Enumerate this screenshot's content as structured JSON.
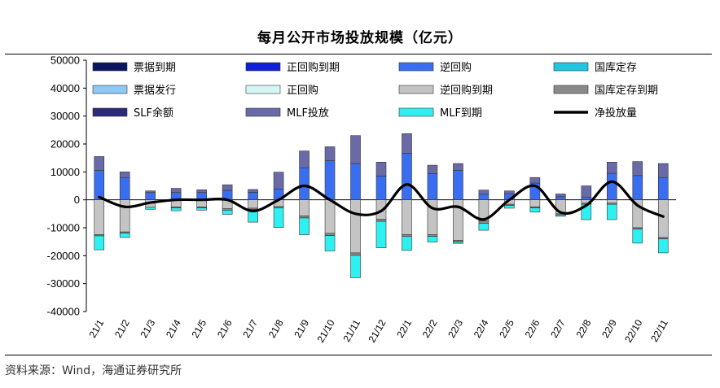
{
  "header": {
    "title": "每月公开市场投放规模（亿元）"
  },
  "footer": {
    "source": "资料来源：Wind，海通证券研究所"
  },
  "colors": {
    "票据到期": "#0a1560",
    "正回购到期": "#1020d8",
    "逆回购": "#3a6ef0",
    "国库定存": "#22c6e0",
    "票据发行": "#8ec8f4",
    "正回购": "#d4f6f6",
    "逆回购到期": "#c4c4c4",
    "国库定存到期": "#8a8a8a",
    "SLF余额": "#2a2a78",
    "MLF投放": "#6a6aa8",
    "MLF到期": "#2ef0f0",
    "净投放量": "#000000"
  },
  "chart_data": {
    "type": "bar",
    "stacked": true,
    "ylim": [
      -40000,
      50000
    ],
    "yticks": [
      50000,
      40000,
      30000,
      20000,
      10000,
      0,
      -10000,
      -20000,
      -30000,
      -40000
    ],
    "categories": [
      "21/1",
      "21/2",
      "21/3",
      "21/4",
      "21/5",
      "21/6",
      "21/7",
      "21/8",
      "21/9",
      "21/10",
      "21/11",
      "21/12",
      "22/1",
      "22/2",
      "22/3",
      "22/4",
      "22/5",
      "22/6",
      "22/7",
      "22/8",
      "22/9",
      "22/10",
      "22/11"
    ],
    "legend": [
      "票据到期",
      "正回购到期",
      "逆回购",
      "国库定存",
      "票据发行",
      "正回购",
      "逆回购到期",
      "国库定存到期",
      "SLF余额",
      "MLF投放",
      "MLF到期",
      "净投放量"
    ],
    "series": [
      {
        "name": "逆回购",
        "values": [
          10500,
          8000,
          2600,
          2600,
          2600,
          3400,
          2700,
          3900,
          11500,
          14000,
          13000,
          8500,
          16700,
          9400,
          10500,
          2000,
          2200,
          6000,
          1100,
          1000,
          9500,
          8700,
          8000
        ]
      },
      {
        "name": "国库定存",
        "values": [
          0,
          0,
          0,
          0,
          0,
          0,
          0,
          0,
          0,
          0,
          0,
          0,
          0,
          0,
          0,
          0,
          0,
          0,
          0,
          0,
          0,
          0,
          0
        ]
      },
      {
        "name": "正回购",
        "values": [
          0,
          0,
          0,
          0,
          0,
          0,
          0,
          0,
          0,
          0,
          0,
          0,
          0,
          0,
          0,
          0,
          0,
          0,
          0,
          0,
          0,
          0,
          0
        ]
      },
      {
        "name": "SLF余额",
        "values": [
          0,
          0,
          0,
          0,
          0,
          0,
          0,
          0,
          0,
          0,
          0,
          0,
          0,
          0,
          0,
          0,
          0,
          0,
          0,
          0,
          0,
          0,
          0
        ]
      },
      {
        "name": "MLF投放",
        "values": [
          5000,
          2000,
          600,
          1500,
          1000,
          2000,
          1000,
          6000,
          6000,
          5000,
          10000,
          5000,
          7000,
          3000,
          2500,
          1500,
          1000,
          2000,
          1000,
          4000,
          4000,
          5000,
          5000
        ]
      },
      {
        "name": "票据发行",
        "values": [
          0,
          0,
          0,
          0,
          0,
          0,
          0,
          0,
          0,
          0,
          0,
          0,
          0,
          0,
          0,
          0,
          0,
          0,
          0,
          0,
          0,
          0,
          0
        ]
      },
      {
        "name": "票据到期",
        "values": [
          0,
          0,
          0,
          0,
          0,
          0,
          0,
          0,
          0,
          0,
          0,
          0,
          0,
          0,
          0,
          0,
          0,
          0,
          0,
          0,
          0,
          0,
          0
        ]
      },
      {
        "name": "正回购到期",
        "values": [
          0,
          0,
          0,
          0,
          0,
          0,
          0,
          0,
          0,
          0,
          0,
          0,
          0,
          0,
          0,
          0,
          0,
          0,
          0,
          0,
          0,
          0,
          0
        ]
      },
      {
        "name": "逆回购到期",
        "values": [
          -12500,
          -11500,
          -2700,
          -2600,
          -2600,
          -3200,
          -3000,
          -2400,
          -5800,
          -12000,
          -19000,
          -7000,
          -12500,
          -12500,
          -14500,
          -7500,
          -1600,
          -2500,
          -5000,
          -1200,
          -1200,
          -10000,
          -13500
        ]
      },
      {
        "name": "国库定存到期",
        "values": [
          -400,
          -400,
          0,
          -300,
          -300,
          -500,
          -500,
          -500,
          -700,
          -800,
          -900,
          -700,
          -600,
          -600,
          -600,
          -900,
          -400,
          -400,
          -400,
          -400,
          -400,
          -500,
          -500
        ]
      },
      {
        "name": "MLF到期",
        "values": [
          -5000,
          -1600,
          -700,
          -1000,
          -800,
          -1500,
          -4500,
          -7000,
          -6000,
          -5500,
          -8000,
          -9500,
          -5000,
          -2000,
          -500,
          -2500,
          -1000,
          -1500,
          -500,
          -5500,
          -5500,
          -5000,
          -5000
        ]
      }
    ],
    "line": {
      "name": "净投放量",
      "values": [
        1000,
        -2500,
        -1000,
        0,
        0,
        0,
        -4000,
        0,
        5000,
        0,
        -5000,
        -4000,
        5500,
        -3000,
        -2500,
        -7000,
        0,
        5000,
        -4500,
        -2000,
        6500,
        -2000,
        -6000
      ]
    }
  }
}
